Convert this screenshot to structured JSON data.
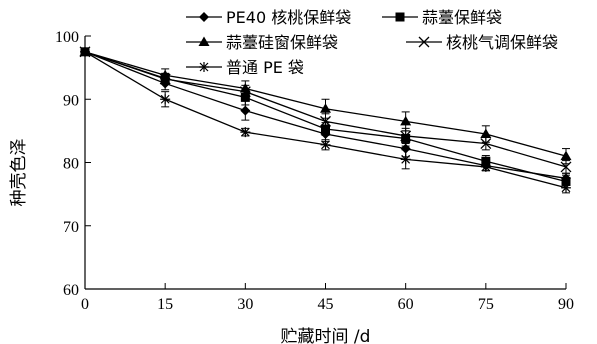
{
  "chart_data": {
    "type": "line",
    "title": "",
    "xlabel": "贮藏时间 /d",
    "ylabel": "种壳色泽",
    "x": [
      0,
      15,
      30,
      45,
      60,
      75,
      90
    ],
    "xlim": [
      0,
      90
    ],
    "ylim": [
      60,
      100
    ],
    "xticks": [
      0,
      15,
      30,
      45,
      60,
      75,
      90
    ],
    "yticks": [
      60,
      70,
      80,
      90,
      100
    ],
    "grid": false,
    "legend_position": "top",
    "series": [
      {
        "name": "PE40 核桃保鲜袋",
        "marker": "diamond",
        "values": [
          97.5,
          92.5,
          88.2,
          84.5,
          82.2,
          79.5,
          77.5
        ],
        "errors": [
          0,
          1.0,
          1.5,
          1.2,
          1.3,
          0.8,
          0.8
        ]
      },
      {
        "name": "蒜薹保鲜袋",
        "marker": "square",
        "values": [
          97.5,
          93.3,
          90.3,
          85.3,
          83.8,
          80.2,
          77.0
        ],
        "errors": [
          0,
          0.8,
          1.2,
          1.0,
          1.2,
          0.9,
          1.0
        ]
      },
      {
        "name": "蒜薹硅窗保鲜袋",
        "marker": "triangle",
        "values": [
          97.5,
          93.8,
          91.7,
          88.5,
          86.5,
          84.5,
          81.0
        ],
        "errors": [
          0,
          1.0,
          1.2,
          1.5,
          1.5,
          1.3,
          1.2
        ]
      },
      {
        "name": "核桃气调保鲜袋",
        "marker": "x",
        "values": [
          97.5,
          93.2,
          91.2,
          86.5,
          84.2,
          83.0,
          79.3
        ],
        "errors": [
          0,
          0.8,
          1.0,
          1.2,
          1.2,
          1.0,
          1.0
        ]
      },
      {
        "name": "普通 PE 袋",
        "marker": "star",
        "values": [
          97.5,
          90.0,
          84.8,
          82.8,
          80.5,
          79.3,
          76.0
        ],
        "errors": [
          0,
          1.2,
          0.6,
          0.8,
          1.5,
          0.6,
          0.8
        ]
      }
    ]
  }
}
